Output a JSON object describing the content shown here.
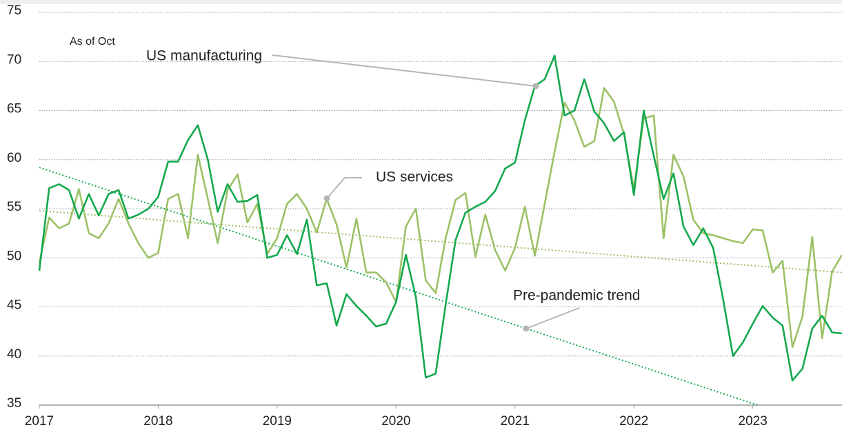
{
  "chart_data": {
    "type": "line",
    "x": [
      2017,
      2017.083,
      2017.167,
      2017.25,
      2017.333,
      2017.417,
      2017.5,
      2017.583,
      2017.667,
      2017.75,
      2017.833,
      2017.917,
      2018,
      2018.083,
      2018.167,
      2018.25,
      2018.333,
      2018.417,
      2018.5,
      2018.583,
      2018.667,
      2018.75,
      2018.833,
      2018.917,
      2019,
      2019.083,
      2019.167,
      2019.25,
      2019.333,
      2019.417,
      2019.5,
      2019.583,
      2019.667,
      2019.75,
      2019.833,
      2019.917,
      2020,
      2020.083,
      2020.167,
      2020.25,
      2020.333,
      2020.417,
      2020.5,
      2020.583,
      2020.667,
      2020.75,
      2020.833,
      2020.917,
      2021,
      2021.083,
      2021.167,
      2021.25,
      2021.333,
      2021.417,
      2021.5,
      2021.583,
      2021.667,
      2021.75,
      2021.833,
      2021.917,
      2022,
      2022.083,
      2022.167,
      2022.25,
      2022.333,
      2022.417,
      2022.5,
      2022.583,
      2022.667,
      2022.75,
      2022.833,
      2022.917,
      2023,
      2023.083,
      2023.167,
      2023.25,
      2023.333,
      2023.417,
      2023.5,
      2023.583,
      2023.667,
      2023.75
    ],
    "series": [
      {
        "name": "US manufacturing",
        "color": "#14a84e",
        "values": [
          48.7,
          57.1,
          57.5,
          56.9,
          54.0,
          56.5,
          54.3,
          56.5,
          56.9,
          54.0,
          54.4,
          55.0,
          56.2,
          59.8,
          59.8,
          62.0,
          63.5,
          60.0,
          54.7,
          57.5,
          55.7,
          55.8,
          56.4,
          50.0,
          50.3,
          52.3,
          50.4,
          53.9,
          47.2,
          47.4,
          43.1,
          46.3,
          45.1,
          44.1,
          43.0,
          43.3,
          45.5,
          50.3,
          46.0,
          37.8,
          38.2,
          45.2,
          51.8,
          54.6,
          55.2,
          55.7,
          56.8,
          59.1,
          59.7,
          64.0,
          67.5,
          68.2,
          70.6,
          64.5,
          65.0,
          68.2,
          64.9,
          63.7,
          61.9,
          62.8,
          56.4,
          65.0,
          60.4,
          56.0,
          58.6,
          53.2,
          51.3,
          53.0,
          51.0,
          45.8,
          40.0,
          41.4,
          43.3,
          45.1,
          43.9,
          43.1,
          37.5,
          38.7,
          42.8,
          44.1,
          42.4,
          42.3
        ]
      },
      {
        "name": "US services",
        "color": "#9cc166",
        "values": [
          49.5,
          54.1,
          53.0,
          53.5,
          57.0,
          52.5,
          52.0,
          53.5,
          56.0,
          53.5,
          51.5,
          50.0,
          50.5,
          56.0,
          56.5,
          52.0,
          60.5,
          56.0,
          51.5,
          56.9,
          58.5,
          53.6,
          55.5,
          50.4,
          52.0,
          55.5,
          56.5,
          55.0,
          52.6,
          56.0,
          53.4,
          49.0,
          54.0,
          48.5,
          48.5,
          47.5,
          45.5,
          53.2,
          55.0,
          47.7,
          46.4,
          52.0,
          55.9,
          56.6,
          50.1,
          54.4,
          50.8,
          48.7,
          51.0,
          55.2,
          50.2,
          55.5,
          60.8,
          65.8,
          64.0,
          61.3,
          61.9,
          67.3,
          65.9,
          62.6,
          57.0,
          64.2,
          64.5,
          52.0,
          60.5,
          58.3,
          53.9,
          52.5,
          52.3,
          52.0,
          51.7,
          51.5,
          52.9,
          52.8,
          48.5,
          49.7,
          40.9,
          44.0,
          52.1,
          41.8,
          48.6,
          50.3
        ]
      }
    ],
    "trends": [
      {
        "color": "#14a84e",
        "x": [
          2017,
          2023.04
        ],
        "values": [
          59.2,
          35
        ]
      },
      {
        "color": "#9cc166",
        "x": [
          2017,
          2023.75
        ],
        "values": [
          54.8,
          48.5
        ]
      }
    ],
    "annotations": [
      {
        "text": "As of Oct",
        "color": "#222222"
      },
      {
        "text": "Pre-pandemic trend",
        "color": "#a6a6a6"
      }
    ],
    "xlim": [
      2017,
      2023.75
    ],
    "xticks": [
      2017,
      2018,
      2019,
      2020,
      2021,
      2022,
      2023
    ],
    "ylim": [
      35,
      75
    ],
    "yticks": [
      35,
      40,
      45,
      50,
      55,
      60,
      65,
      70,
      75
    ],
    "grid": true
  }
}
